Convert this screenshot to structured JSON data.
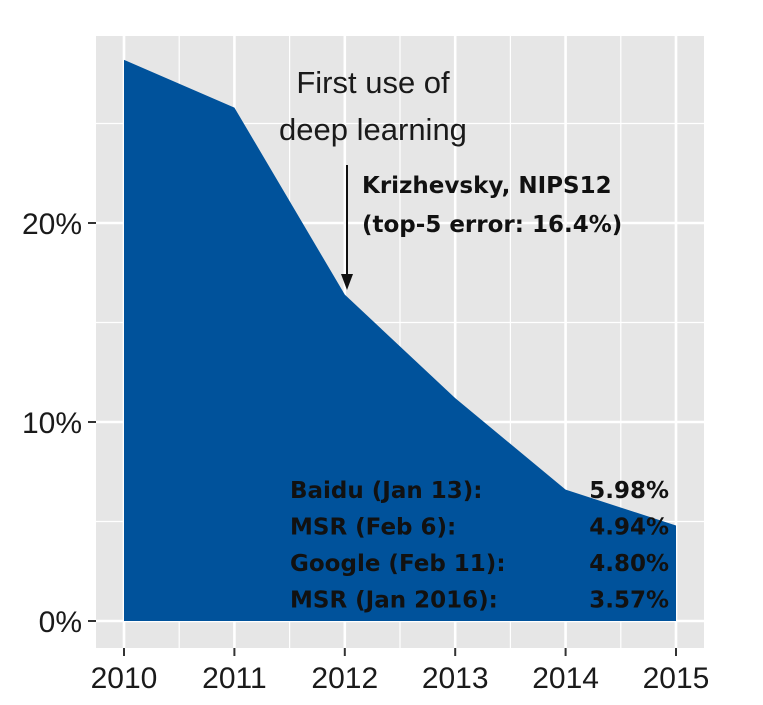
{
  "chart_data": {
    "type": "area",
    "x": [
      "2010",
      "2011",
      "2012",
      "2013",
      "2014",
      "2015"
    ],
    "values": [
      28.2,
      25.8,
      16.4,
      11.2,
      6.6,
      4.8
    ],
    "ylim": [
      0,
      30
    ],
    "y_ticks": [
      "0%",
      "10%",
      "20%"
    ],
    "y_tick_values": [
      0,
      10,
      20
    ],
    "grid": true,
    "colors": {
      "fill": "#00529b",
      "panel": "#e6e6e6",
      "grid": "#ffffff"
    },
    "annotations": {
      "arrow_note": [
        "First use of",
        "deep learning"
      ],
      "highlight": [
        "Krizhevsky, NIPS12",
        "(top-5 error: 16.4%)"
      ],
      "results": [
        {
          "label": "Baidu (Jan 13):",
          "value": "5.98%"
        },
        {
          "label": "MSR (Feb 6):",
          "value": "4.94%"
        },
        {
          "label": "Google (Feb 11):",
          "value": "4.80%"
        },
        {
          "label": "MSR (Jan 2016):",
          "value": "3.57%"
        }
      ]
    }
  }
}
